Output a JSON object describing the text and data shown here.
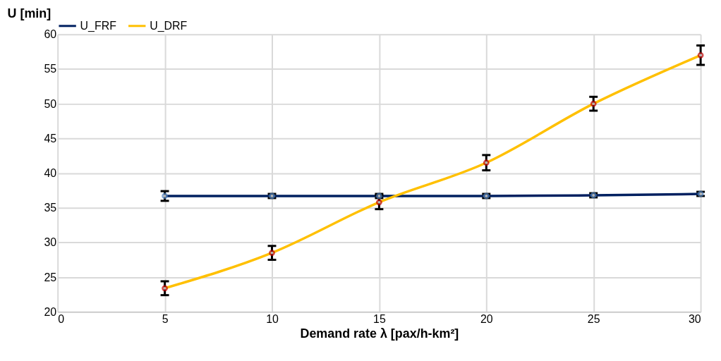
{
  "chart_data": {
    "type": "line",
    "xlabel": "Demand rate λ [pax/h-km²]",
    "ylabel": "U [min]",
    "x": [
      5,
      10,
      15,
      20,
      25,
      30
    ],
    "series": [
      {
        "name": "U_FRF",
        "color": "#002060",
        "values": [
          36.7,
          36.7,
          36.7,
          36.7,
          36.8,
          37.0
        ],
        "errors": [
          0.7,
          0.3,
          0.3,
          0.3,
          0.3,
          0.3
        ]
      },
      {
        "name": "U_DRF",
        "color": "#ffc000",
        "values": [
          23.4,
          28.5,
          35.8,
          41.5,
          50.0,
          57.0
        ],
        "errors": [
          1.0,
          1.0,
          1.0,
          1.1,
          1.0,
          1.4
        ]
      }
    ],
    "xlim": [
      0,
      30
    ],
    "xticks": [
      0,
      5,
      10,
      15,
      20,
      25,
      30
    ],
    "ylim": [
      20,
      60
    ],
    "yticks": [
      20,
      25,
      30,
      35,
      40,
      45,
      50,
      55,
      60
    ],
    "grid": true,
    "legend": "top",
    "marker": "circle",
    "line_style": "solid"
  }
}
